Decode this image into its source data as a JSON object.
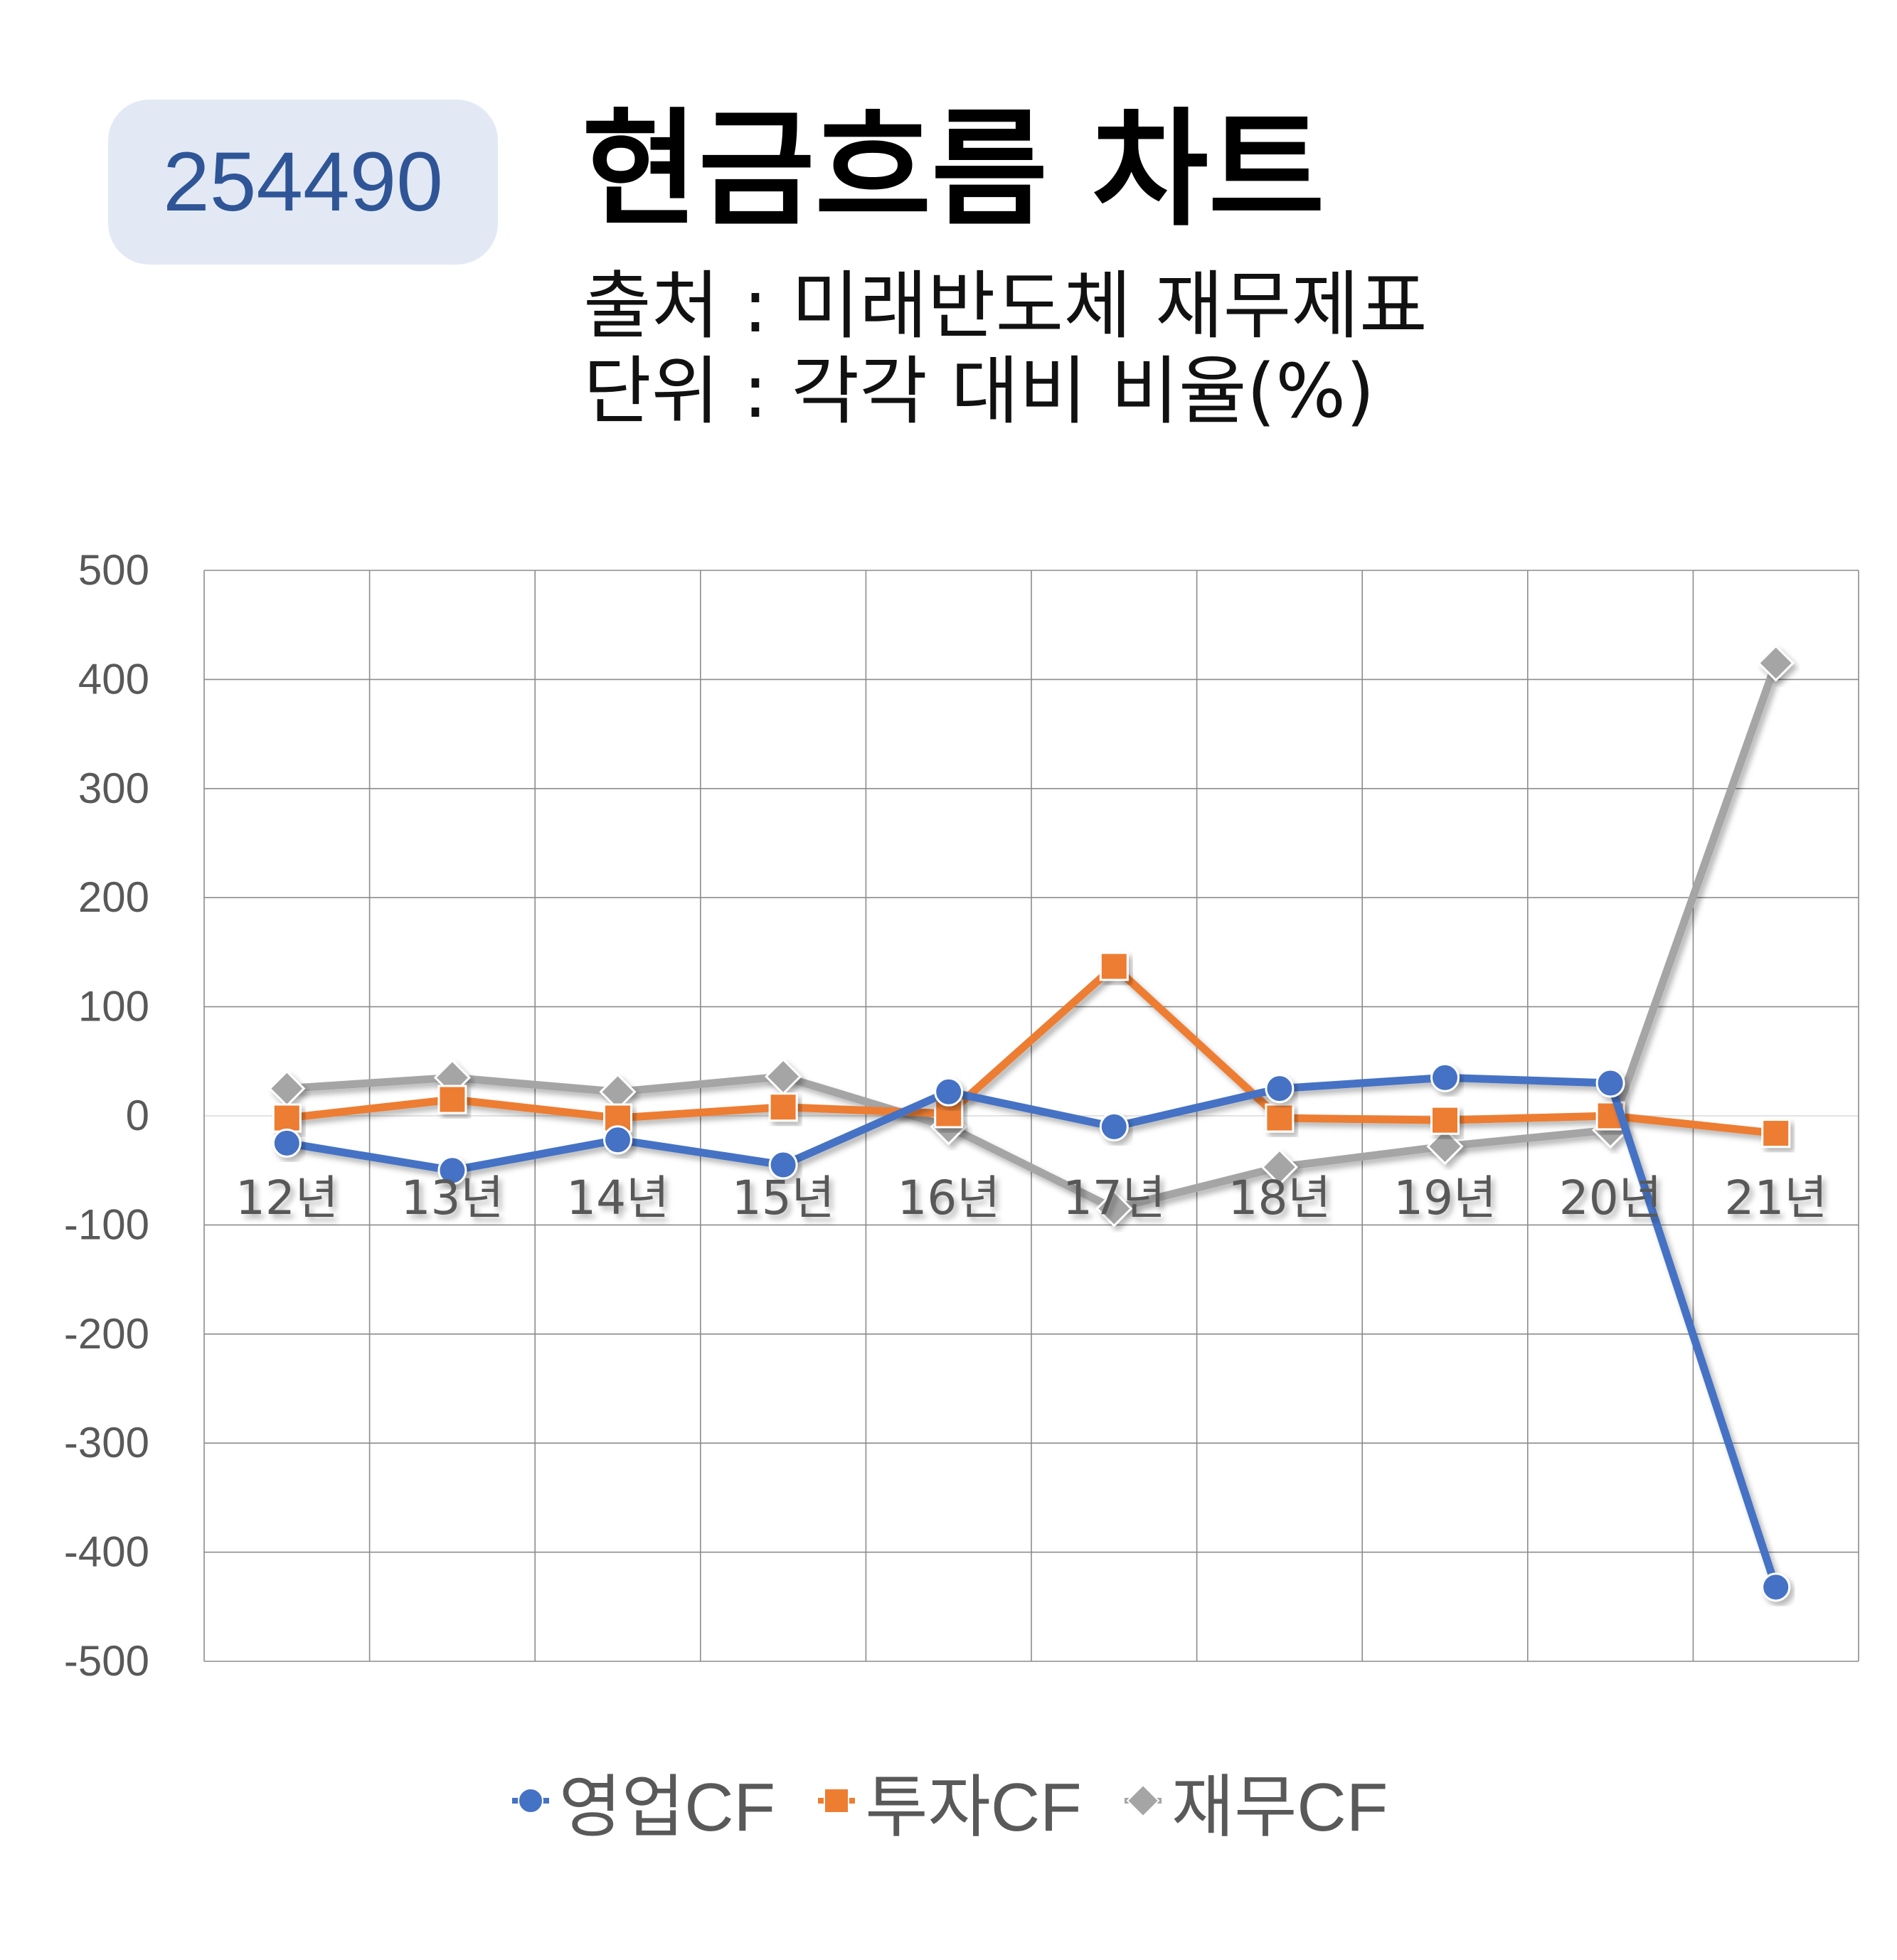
{
  "badge": {
    "code": "254490"
  },
  "header": {
    "title": "현금흐름 차트",
    "source": "출처 : 미래반도체 재무제표",
    "unit": "단위 : 각각 대비 비율(%)"
  },
  "colors": {
    "op": "#4472c4",
    "inv": "#ed7d31",
    "fin": "#a5a5a5",
    "badge_bg": "#e2e9f4",
    "badge_text": "#2f5597"
  },
  "chart_data": {
    "type": "line",
    "categories": [
      "12년",
      "13년",
      "14년",
      "15년",
      "16년",
      "17년",
      "18년",
      "19년",
      "20년",
      "21년"
    ],
    "series": [
      {
        "name": "영업CF",
        "marker": "circle",
        "color": "#4472c4",
        "values": [
          -25,
          -50,
          -22,
          -45,
          22,
          -10,
          25,
          35,
          30,
          -432
        ]
      },
      {
        "name": "투자CF",
        "marker": "square",
        "color": "#ed7d31",
        "values": [
          -2,
          15,
          -2,
          8,
          2,
          137,
          -2,
          -4,
          0,
          -16
        ]
      },
      {
        "name": "재무CF",
        "marker": "diamond",
        "color": "#a5a5a5",
        "values": [
          25,
          35,
          22,
          36,
          -10,
          -85,
          -47,
          -28,
          -13,
          415
        ]
      }
    ],
    "yticks": [
      500,
      400,
      300,
      200,
      100,
      0,
      -100,
      -200,
      -300,
      -400,
      -500
    ],
    "ylim": [
      -500,
      500
    ],
    "grid": true,
    "legend": "bottom"
  }
}
